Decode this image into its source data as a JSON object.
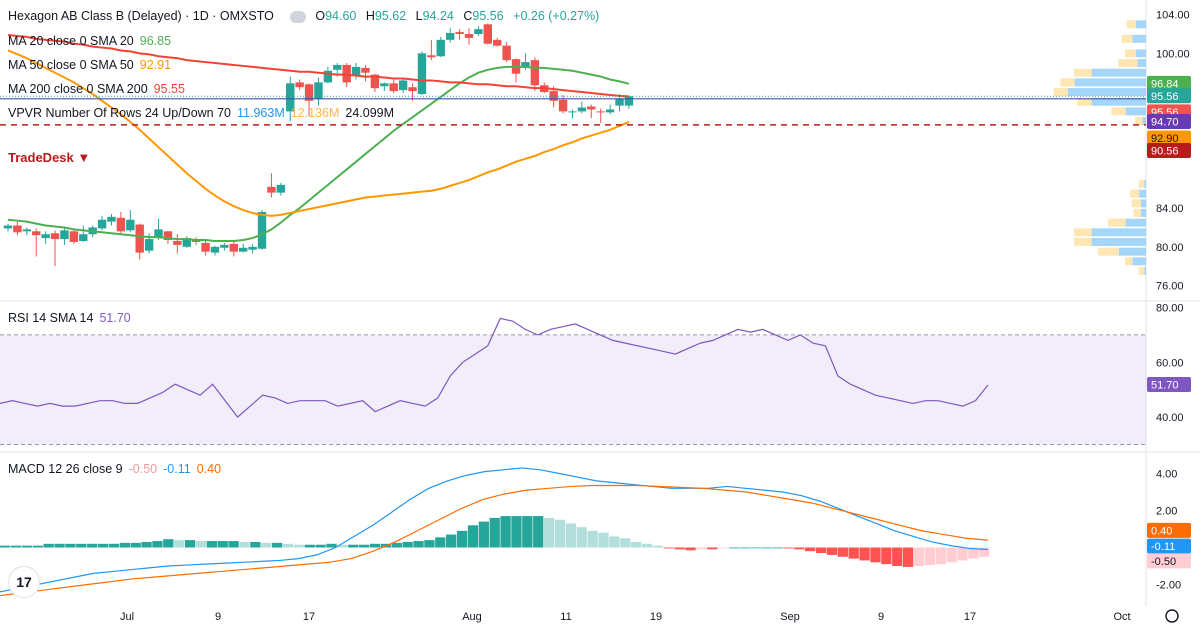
{
  "header": {
    "symbol": "Hexagon AB Class B (Delayed) · 1D · OMXSTO",
    "open_label": "O",
    "open": "94.60",
    "high_label": "H",
    "high": "95.62",
    "low_label": "L",
    "low": "94.24",
    "close_label": "C",
    "close": "95.56",
    "change": "+0.26 (+0.27%)"
  },
  "legend": {
    "ma20": {
      "label": "MA 20 close 0 SMA 20",
      "value": "96.85"
    },
    "ma50": {
      "label": "MA 50 close 0 SMA 50",
      "value": "92.91"
    },
    "ma200": {
      "label": "MA 200 close 0 SMA 200",
      "value": "95.55"
    },
    "vpvr": {
      "label": "VPVR Number Of Rows 24 Up/Down 70",
      "up": "11.963M",
      "down": "12.136M",
      "total": "24.099M"
    },
    "rsi": {
      "label": "RSI 14 SMA 14",
      "value": "51.70"
    },
    "macd": {
      "label": "MACD 12 26 close 9",
      "hist": "-0.50",
      "macd": "-0.11",
      "signal": "0.40"
    }
  },
  "trade_desk": "TradeDesk ▼",
  "colors": {
    "up": "#26a69a",
    "down": "#ef5350",
    "ma20": "#4caf50",
    "ma50": "#ff9800",
    "ma200": "#f44336",
    "rsi": "#7e57c2",
    "macd": "#2196f3",
    "signal": "#ff6d00"
  },
  "chart_data": [
    {
      "type": "candlestick",
      "title": "Hexagon AB Class B (Delayed) · 1D · OMXSTO",
      "ylim": [
        74.5,
        105
      ],
      "y_ticks": [
        "104.00",
        "100.00",
        "84.00",
        "80.00",
        "76.00"
      ],
      "x_ticks": [
        "Jul",
        "9",
        "17",
        "Aug",
        "11",
        "19",
        "Sep",
        "9",
        "17",
        "Oct"
      ],
      "candles": [
        [
          81.9,
          82.4,
          81.6,
          82.2
        ],
        [
          82.2,
          82.6,
          81.2,
          81.5
        ],
        [
          81.6,
          82.0,
          81.2,
          81.8
        ],
        [
          81.6,
          81.9,
          79.0,
          81.2
        ],
        [
          80.9,
          81.6,
          80.3,
          81.3
        ],
        [
          81.4,
          81.7,
          78.0,
          80.8
        ],
        [
          80.8,
          81.9,
          80.2,
          81.7
        ],
        [
          81.6,
          81.9,
          80.3,
          80.5
        ],
        [
          80.6,
          82.2,
          80.5,
          81.3
        ],
        [
          81.3,
          82.2,
          81.0,
          82.0
        ],
        [
          81.9,
          83.2,
          81.7,
          82.8
        ],
        [
          82.6,
          83.4,
          82.2,
          83.1
        ],
        [
          83.0,
          83.6,
          81.4,
          81.6
        ],
        [
          81.7,
          83.8,
          81.5,
          82.8
        ],
        [
          82.3,
          82.4,
          78.7,
          79.4
        ],
        [
          79.6,
          81.4,
          79.3,
          80.8
        ],
        [
          80.9,
          82.9,
          80.7,
          81.8
        ],
        [
          81.6,
          81.6,
          80.3,
          80.7
        ],
        [
          80.6,
          81.3,
          79.3,
          80.2
        ],
        [
          80.0,
          81.1,
          79.9,
          80.9
        ],
        [
          80.8,
          81.0,
          80.2,
          80.5
        ],
        [
          80.4,
          80.8,
          79.1,
          79.5
        ],
        [
          79.4,
          80.1,
          79.1,
          80.0
        ],
        [
          79.9,
          80.4,
          79.6,
          80.2
        ],
        [
          80.3,
          80.5,
          79.0,
          79.5
        ],
        [
          79.5,
          80.3,
          79.4,
          79.9
        ],
        [
          79.7,
          80.3,
          79.3,
          80.0
        ],
        [
          79.8,
          83.8,
          79.7,
          83.6
        ],
        [
          86.2,
          87.6,
          85.1,
          85.6
        ],
        [
          85.6,
          86.6,
          85.3,
          86.4
        ],
        [
          94.0,
          97.6,
          93.0,
          96.9
        ],
        [
          97.0,
          97.3,
          96.2,
          96.5
        ],
        [
          96.8,
          96.9,
          93.5,
          95.1
        ],
        [
          95.3,
          97.5,
          94.6,
          97.0
        ],
        [
          97.0,
          98.6,
          96.9,
          98.2
        ],
        [
          98.3,
          99.0,
          97.6,
          98.8
        ],
        [
          98.8,
          99.0,
          96.5,
          97.0
        ],
        [
          97.7,
          99.0,
          97.3,
          98.6
        ],
        [
          98.5,
          98.8,
          97.1,
          98.0
        ],
        [
          97.8,
          97.9,
          96.0,
          96.4
        ],
        [
          96.6,
          97.0,
          96.1,
          96.9
        ],
        [
          96.9,
          97.3,
          95.9,
          96.1
        ],
        [
          96.2,
          97.4,
          95.9,
          97.2
        ],
        [
          96.5,
          96.9,
          95.1,
          96.1
        ],
        [
          95.8,
          100.2,
          95.7,
          100.0
        ],
        [
          99.8,
          101.4,
          99.3,
          99.6
        ],
        [
          99.7,
          101.7,
          99.6,
          101.4
        ],
        [
          101.4,
          102.6,
          101.1,
          102.1
        ],
        [
          102.2,
          102.5,
          101.4,
          102.0
        ],
        [
          102.0,
          102.6,
          100.9,
          101.6
        ],
        [
          102.0,
          102.8,
          101.8,
          102.5
        ],
        [
          103.0,
          103.1,
          100.9,
          101.0
        ],
        [
          101.4,
          101.6,
          100.7,
          100.8
        ],
        [
          100.8,
          101.2,
          99.1,
          99.3
        ],
        [
          99.4,
          99.5,
          97.0,
          97.9
        ],
        [
          98.5,
          100.0,
          98.3,
          99.1
        ],
        [
          99.3,
          99.6,
          96.1,
          96.7
        ],
        [
          96.7,
          97.0,
          95.9,
          96.0
        ],
        [
          96.1,
          96.6,
          94.4,
          95.1
        ],
        [
          95.2,
          95.7,
          93.8,
          94.0
        ],
        [
          93.9,
          94.2,
          93.3,
          94.0
        ],
        [
          94.0,
          95.0,
          93.8,
          94.4
        ],
        [
          94.5,
          94.7,
          93.3,
          94.2
        ],
        [
          94.0,
          94.3,
          92.8,
          93.9
        ],
        [
          93.9,
          94.7,
          93.7,
          94.2
        ],
        [
          94.6,
          95.8,
          94.0,
          95.3
        ],
        [
          94.6,
          95.62,
          94.24,
          95.56
        ]
      ],
      "series": [
        {
          "name": "MA 20 close 0 SMA 20",
          "values": [
            82.8,
            82.7,
            82.6,
            82.4,
            82.2,
            82.1,
            82.0,
            81.8,
            81.7,
            81.6,
            81.5,
            81.4,
            81.3,
            81.2,
            81.1,
            81.0,
            81.0,
            80.9,
            80.8,
            80.8,
            80.7,
            80.7,
            80.6,
            80.6,
            80.6,
            80.7,
            80.9,
            81.3,
            81.8,
            82.5,
            83.3,
            84.0,
            84.8,
            85.6,
            86.4,
            87.2,
            88.0,
            88.8,
            89.6,
            90.4,
            91.2,
            92.0,
            92.7,
            93.4,
            94.1,
            94.8,
            95.5,
            96.2,
            96.9,
            97.5,
            98.0,
            98.3,
            98.5,
            98.6,
            98.6,
            98.6,
            98.5,
            98.5,
            98.4,
            98.3,
            98.2,
            98.0,
            97.8,
            97.6,
            97.3,
            97.1,
            96.85
          ]
        },
        {
          "name": "MA 50 close 0 SMA 50",
          "values": [
            100.3,
            99.9,
            99.5,
            99.0,
            98.5,
            98.0,
            97.5,
            97.0,
            96.4,
            95.8,
            95.1,
            94.4,
            93.7,
            92.9,
            92.1,
            91.2,
            90.3,
            89.4,
            88.5,
            87.6,
            86.8,
            86.0,
            85.3,
            84.7,
            84.2,
            83.8,
            83.5,
            83.3,
            83.2,
            83.3,
            83.5,
            83.7,
            83.9,
            84.1,
            84.3,
            84.5,
            84.7,
            84.9,
            85.1,
            85.2,
            85.3,
            85.4,
            85.5,
            85.6,
            85.7,
            85.8,
            86.0,
            86.3,
            86.6,
            86.9,
            87.3,
            87.7,
            88.0,
            88.4,
            88.8,
            89.1,
            89.4,
            89.8,
            90.1,
            90.5,
            90.8,
            91.2,
            91.5,
            91.8,
            92.1,
            92.5,
            92.91
          ]
        },
        {
          "name": "MA 200 close 0 SMA 200",
          "values": [
            101.9,
            101.8,
            101.7,
            101.5,
            101.4,
            101.3,
            101.2,
            101.0,
            100.9,
            100.7,
            100.6,
            100.5,
            100.3,
            100.2,
            100.0,
            99.9,
            99.7,
            99.6,
            99.5,
            99.3,
            99.2,
            99.1,
            99.0,
            98.9,
            98.8,
            98.7,
            98.6,
            98.5,
            98.4,
            98.3,
            98.2,
            98.1,
            98.1,
            98.0,
            97.9,
            97.8,
            97.8,
            97.7,
            97.6,
            97.6,
            97.5,
            97.4,
            97.4,
            97.3,
            97.2,
            97.2,
            97.1,
            97.0,
            97.0,
            96.9,
            96.8,
            96.8,
            96.7,
            96.6,
            96.6,
            96.5,
            96.4,
            96.4,
            96.3,
            96.2,
            96.1,
            96.0,
            95.9,
            95.8,
            95.7,
            95.6,
            95.55
          ]
        }
      ],
      "price_labels": [
        "96.84",
        "95.56",
        "95.56",
        "94.70",
        "92.90",
        "90.56"
      ],
      "trade_desk_level": 92.6
    },
    {
      "type": "line",
      "title": "RSI 14 SMA 14",
      "ylim": [
        28,
        82
      ],
      "y_ticks": [
        "80.00",
        "60.00",
        "40.00"
      ],
      "band": [
        30,
        70
      ],
      "values": [
        45,
        46,
        45,
        44,
        45,
        44,
        44,
        45,
        46,
        46,
        45,
        45,
        47,
        49,
        52,
        50,
        48,
        52,
        46,
        40,
        44,
        48,
        47,
        45,
        46,
        46,
        46,
        44,
        45,
        46,
        42,
        44,
        46,
        45,
        44,
        47,
        55,
        60,
        63,
        66,
        76,
        75,
        72,
        70,
        72,
        73,
        74,
        72,
        70,
        68,
        67,
        66,
        65,
        64,
        63,
        65,
        67,
        68,
        70,
        72,
        71,
        72,
        70,
        68,
        70,
        67,
        66,
        55,
        52,
        50,
        48,
        47,
        46,
        45,
        46,
        46,
        45,
        44,
        46,
        51.7
      ],
      "last_label": "51.70"
    },
    {
      "type": "bar+line",
      "title": "MACD 12 26 close 9",
      "ylim": [
        -3,
        5
      ],
      "y_ticks": [
        "4.00",
        "2.00",
        "-2.00"
      ],
      "histogram": [
        0.1,
        0.1,
        0.1,
        0.1,
        0.2,
        0.2,
        0.2,
        0.2,
        0.2,
        0.2,
        0.2,
        0.25,
        0.25,
        0.3,
        0.35,
        0.45,
        0.4,
        0.4,
        0.35,
        0.35,
        0.35,
        0.35,
        0.3,
        0.3,
        0.25,
        0.25,
        0.2,
        0.15,
        0.15,
        0.15,
        0.2,
        0.15,
        0.15,
        0.15,
        0.2,
        0.2,
        0.25,
        0.3,
        0.35,
        0.4,
        0.55,
        0.7,
        0.9,
        1.2,
        1.4,
        1.6,
        1.7,
        1.7,
        1.7,
        1.7,
        1.6,
        1.5,
        1.3,
        1.1,
        0.9,
        0.8,
        0.6,
        0.5,
        0.3,
        0.2,
        0.1,
        -0.05,
        -0.1,
        -0.15,
        -0.1,
        -0.1,
        -0.05,
        0.0,
        0.0,
        0.0,
        0.0,
        0.0,
        -0.05,
        -0.1,
        -0.2,
        -0.3,
        -0.4,
        -0.5,
        -0.6,
        -0.7,
        -0.8,
        -0.9,
        -1.0,
        -1.05,
        -1.0,
        -0.95,
        -0.9,
        -0.8,
        -0.7,
        -0.6,
        -0.5
      ],
      "macd": [
        -2.4,
        -2.2,
        -2.0,
        -1.8,
        -1.6,
        -1.4,
        -1.3,
        -1.2,
        -1.1,
        -1.0,
        -0.95,
        -0.9,
        -0.85,
        -0.8,
        -0.75,
        -0.7,
        -0.6,
        -0.4,
        0.0,
        0.6,
        1.2,
        1.9,
        2.6,
        3.2,
        3.6,
        3.9,
        4.1,
        4.2,
        4.3,
        4.2,
        4.0,
        3.8,
        3.6,
        3.5,
        3.4,
        3.3,
        3.2,
        3.2,
        3.2,
        3.3,
        3.2,
        3.1,
        3.0,
        2.8,
        2.5,
        2.1,
        1.7,
        1.3,
        0.9,
        0.6,
        0.3,
        0.1,
        -0.05,
        -0.11
      ],
      "signal": [
        -2.6,
        -2.45,
        -2.3,
        -2.15,
        -2.0,
        -1.85,
        -1.7,
        -1.6,
        -1.5,
        -1.4,
        -1.3,
        -1.2,
        -1.1,
        -1.0,
        -0.9,
        -0.8,
        -0.6,
        -0.2,
        0.3,
        0.9,
        1.5,
        2.1,
        2.6,
        2.9,
        3.1,
        3.2,
        3.3,
        3.35,
        3.35,
        3.35,
        3.3,
        3.25,
        3.2,
        3.1,
        3.0,
        2.8,
        2.6,
        2.4,
        2.1,
        1.8,
        1.5,
        1.2,
        0.9,
        0.7,
        0.5,
        0.4
      ],
      "labels": [
        "0.40",
        "-0.11",
        "-0.50"
      ]
    }
  ]
}
